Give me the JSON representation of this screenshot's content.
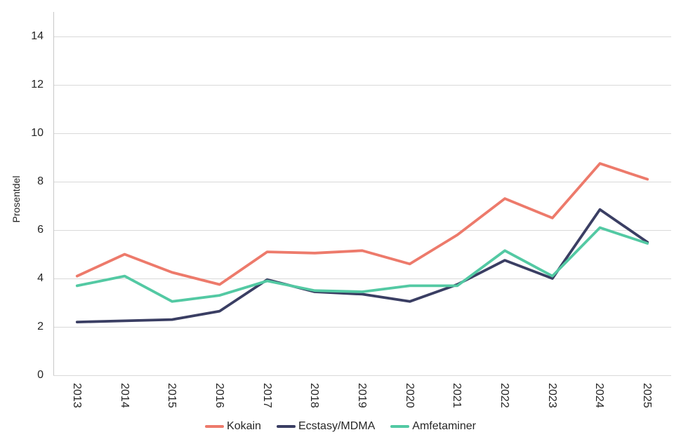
{
  "chart_data": {
    "type": "line",
    "title": "",
    "xlabel": "",
    "ylabel": "Prosentdel",
    "categories": [
      "2013",
      "2014",
      "2015",
      "2016",
      "2017",
      "2018",
      "2019",
      "2020",
      "2021",
      "2022",
      "2023",
      "2024",
      "2025"
    ],
    "series": [
      {
        "id": "kokain",
        "name": "Kokain",
        "color": "#ED7A6B",
        "values": [
          4.1,
          5.0,
          4.25,
          3.75,
          5.1,
          5.05,
          5.15,
          4.6,
          5.8,
          7.3,
          6.5,
          8.75,
          8.1
        ]
      },
      {
        "id": "ecstasy-mdma",
        "name": "Ecstasy/MDMA",
        "color": "#3A3E63",
        "values": [
          2.2,
          2.25,
          2.3,
          2.65,
          3.95,
          3.45,
          3.35,
          3.05,
          3.75,
          4.75,
          4.0,
          6.85,
          5.5
        ]
      },
      {
        "id": "amfetaminer",
        "name": "Amfetaminer",
        "color": "#53C9A3",
        "values": [
          3.7,
          4.1,
          3.05,
          3.3,
          3.9,
          3.5,
          3.45,
          3.7,
          3.7,
          5.15,
          4.1,
          6.1,
          5.45
        ]
      }
    ],
    "ylim": [
      0,
      15
    ],
    "yticks": [
      0,
      2,
      4,
      6,
      8,
      10,
      12,
      14
    ],
    "grid": "horizontal",
    "legend_position": "bottom",
    "gridline_color": "#D9D9D9",
    "axis_color": "#C8C8C8",
    "tick_label_color": "#262626"
  }
}
